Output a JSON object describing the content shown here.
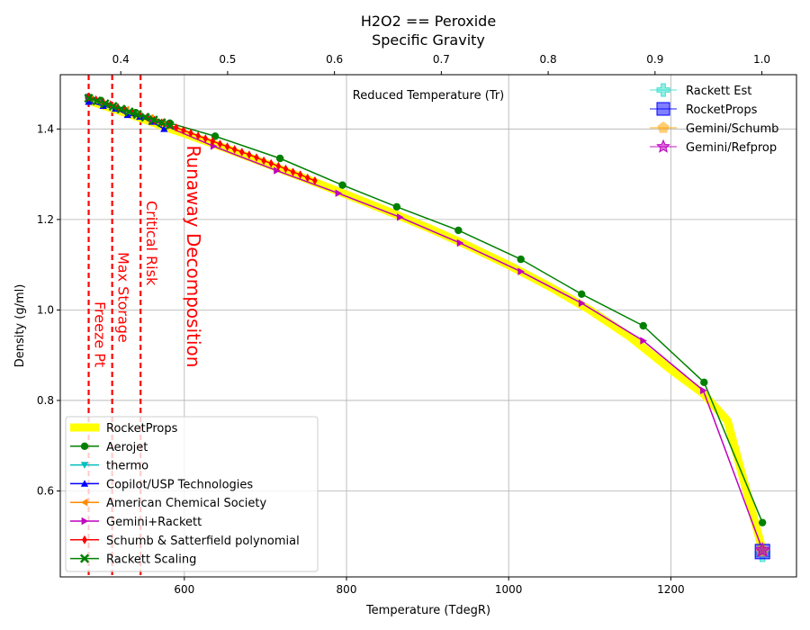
{
  "chart_data": {
    "type": "line",
    "title": "H2O2 == Peroxide",
    "top_axis_label": "Specific Gravity",
    "xlabel": "Temperature (TdegR)",
    "ylabel": "Density (g/ml)",
    "inner_label": "Reduced Temperature (Tr)",
    "xlim": [
      447,
      1355
    ],
    "ylim": [
      0.41,
      1.52
    ],
    "x_ticks": [
      600,
      800,
      1000,
      1200
    ],
    "y_ticks": [
      0.6,
      0.8,
      1.0,
      1.2,
      1.4
    ],
    "top_xlim": [
      0.3434,
      1.0324
    ],
    "top_ticks": [
      0.4,
      0.5,
      0.6,
      0.7,
      0.8,
      0.9,
      1.0
    ],
    "grid": true,
    "vlines": [
      {
        "x": 482,
        "label": "Freeze Pt",
        "color": "#ff0000"
      },
      {
        "x": 511,
        "label": "Max Storage",
        "color": "#ff0000"
      },
      {
        "x": 546,
        "label": "Critical Risk",
        "color": "#ff0000"
      }
    ],
    "annotation": {
      "x": 600,
      "y": 1.37,
      "text": "Runaway Decomposition",
      "color": "#ff0000"
    },
    "series": [
      {
        "name": "RocketProps",
        "color": "#ffff00",
        "marker": "none",
        "x": [
          482,
          500,
          520,
          540,
          560,
          580,
          600,
          650,
          700,
          750,
          800,
          850,
          900,
          950,
          1000,
          1050,
          1100,
          1150,
          1200,
          1240,
          1270,
          1313
        ],
        "y": [
          1.463,
          1.452,
          1.44,
          1.428,
          1.415,
          1.402,
          1.39,
          1.358,
          1.324,
          1.29,
          1.255,
          1.219,
          1.182,
          1.142,
          1.099,
          1.052,
          1.0,
          0.94,
          0.868,
          0.815,
          0.755,
          0.47
        ]
      },
      {
        "name": "Aerojet",
        "color": "#008000",
        "marker": "circle",
        "x": [
          482,
          497,
          540,
          582,
          638,
          718,
          795,
          862,
          938,
          1015,
          1090,
          1166,
          1241,
          1313
        ],
        "y": [
          1.47,
          1.463,
          1.436,
          1.413,
          1.384,
          1.335,
          1.276,
          1.228,
          1.176,
          1.112,
          1.035,
          0.965,
          0.84,
          0.53
        ]
      },
      {
        "name": "thermo",
        "color": "#00bfbf",
        "marker": "triangle-down",
        "x": [
          484,
          497,
          512,
          528,
          543,
          558
        ],
        "y": [
          1.465,
          1.458,
          1.449,
          1.441,
          1.432,
          1.424
        ]
      },
      {
        "name": "Copilot/USP Technologies",
        "color": "#0000ff",
        "marker": "triangle-up",
        "x": [
          482,
          500,
          515,
          530,
          545,
          560,
          575
        ],
        "y": [
          1.46,
          1.451,
          1.445,
          1.431,
          1.427,
          1.416,
          1.4
        ]
      },
      {
        "name": "American Chemical Society",
        "color": "#ff8c00",
        "marker": "triangle-left",
        "x": [
          484,
          497,
          512,
          528,
          543,
          558,
          572
        ],
        "y": [
          1.467,
          1.459,
          1.451,
          1.443,
          1.434,
          1.425,
          1.416
        ]
      },
      {
        "name": "Gemini+Rackett",
        "color": "#bf00bf",
        "marker": "triangle-right",
        "x": [
          482,
          560,
          636,
          714,
          790,
          866,
          940,
          1015,
          1090,
          1166,
          1240,
          1313
        ],
        "y": [
          1.47,
          1.42,
          1.362,
          1.308,
          1.258,
          1.205,
          1.148,
          1.085,
          1.015,
          0.932,
          0.822,
          0.47
        ]
      },
      {
        "name": "Schumb & Satterfield polynomial",
        "color": "#ff0000",
        "marker": "diamond",
        "x": [
          482,
          491,
          500,
          509,
          518,
          527,
          536,
          545,
          554,
          563,
          572,
          581,
          590,
          599,
          608,
          617,
          626,
          635,
          644,
          653,
          662,
          671,
          680,
          689,
          698,
          707,
          716,
          725,
          734,
          743,
          752,
          761
        ],
        "y": [
          1.47,
          1.465,
          1.459,
          1.454,
          1.448,
          1.443,
          1.437,
          1.432,
          1.426,
          1.42,
          1.414,
          1.409,
          1.403,
          1.397,
          1.391,
          1.385,
          1.379,
          1.373,
          1.367,
          1.361,
          1.355,
          1.349,
          1.343,
          1.337,
          1.33,
          1.324,
          1.318,
          1.312,
          1.305,
          1.299,
          1.292,
          1.286
        ]
      },
      {
        "name": "Rackett Scaling",
        "color": "#008000",
        "marker": "x",
        "x": [
          482,
          492,
          502,
          512,
          522,
          532,
          542,
          552,
          562,
          572,
          582
        ],
        "y": [
          1.468,
          1.462,
          1.456,
          1.45,
          1.444,
          1.438,
          1.432,
          1.426,
          1.42,
          1.414,
          1.408
        ]
      }
    ],
    "critical_points": [
      {
        "name": "Rackett Est",
        "color": "#40e0d0",
        "marker": "plus",
        "x": 1313,
        "y": 0.46
      },
      {
        "name": "RocketProps",
        "color": "#0000ff",
        "marker": "square",
        "x": 1313,
        "y": 0.466
      },
      {
        "name": "Gemini/Schumb",
        "color": "#ffa500",
        "marker": "pentagon",
        "x": 1313,
        "y": 0.468
      },
      {
        "name": "Gemini/Refprop",
        "color": "#bf00bf",
        "marker": "star",
        "x": 1313,
        "y": 0.469
      }
    ],
    "legend_left_placement": "lower-left",
    "legend_right_placement": "upper-right"
  }
}
